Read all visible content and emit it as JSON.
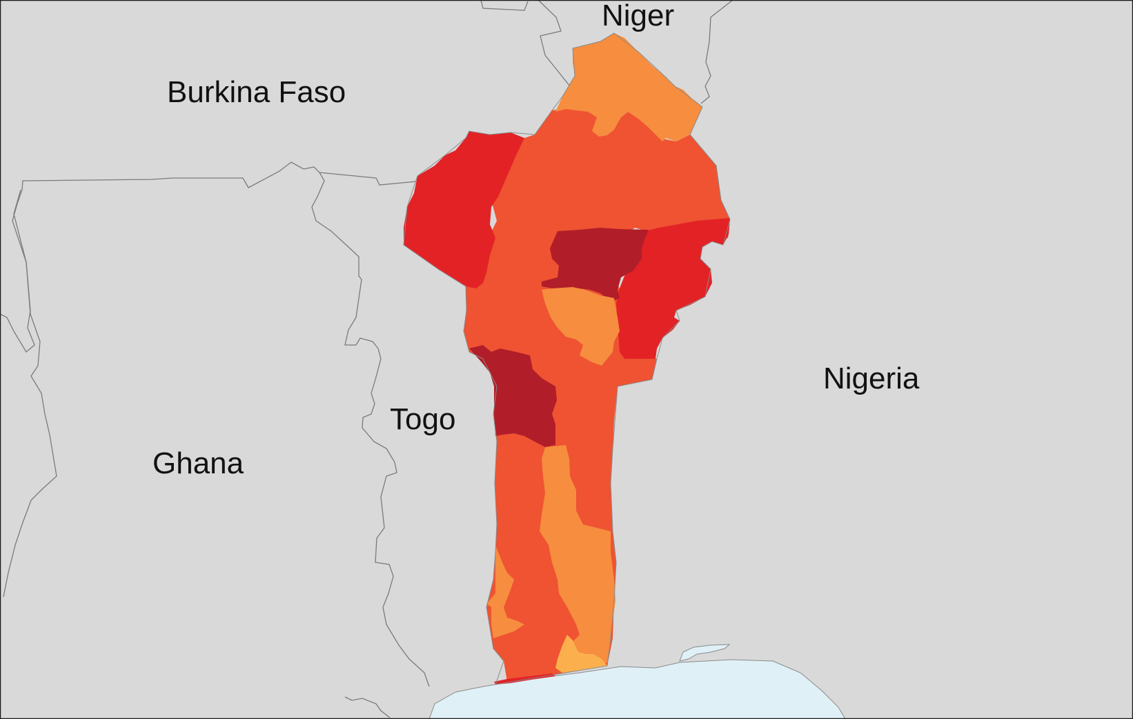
{
  "map": {
    "colors": {
      "land": "#d9d9d9",
      "water": "#dff0f7",
      "border": "#7a7a7a",
      "frame": "#1a1a1a",
      "region_light_orange": "#f68d3f",
      "region_orange_red": "#ef5332",
      "region_red": "#e32226",
      "region_dark_red": "#b11e29",
      "region_yellow_orange": "#fbb04d"
    },
    "labels": {
      "niger": "Niger",
      "burkina_faso": "Burkina Faso",
      "nigeria": "Nigeria",
      "togo": "Togo",
      "ghana": "Ghana"
    }
  }
}
